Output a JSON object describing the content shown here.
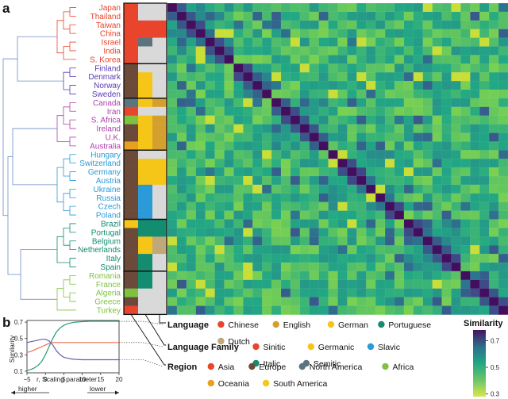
{
  "panels": {
    "a": "a",
    "b": "b"
  },
  "countries": [
    {
      "name": "Japan",
      "color": "#e8452c",
      "group": 0
    },
    {
      "name": "Thailand",
      "color": "#e8452c",
      "group": 0
    },
    {
      "name": "Taiwan",
      "color": "#e8452c",
      "group": 0
    },
    {
      "name": "China",
      "color": "#e8452c",
      "group": 0
    },
    {
      "name": "Israel",
      "color": "#e8452c",
      "group": 0
    },
    {
      "name": "India",
      "color": "#e8452c",
      "group": 0
    },
    {
      "name": "S. Korea",
      "color": "#e8452c",
      "group": 0
    },
    {
      "name": "Finland",
      "color": "#5b3ab5",
      "group": 1
    },
    {
      "name": "Denmark",
      "color": "#5b3ab5",
      "group": 1
    },
    {
      "name": "Norway",
      "color": "#5b3ab5",
      "group": 1
    },
    {
      "name": "Sweden",
      "color": "#5b3ab5",
      "group": 1
    },
    {
      "name": "Canada",
      "color": "#b03fae",
      "group": 2
    },
    {
      "name": "Iran",
      "color": "#b03fae",
      "group": 2
    },
    {
      "name": "S. Africa",
      "color": "#b03fae",
      "group": 2
    },
    {
      "name": "Ireland",
      "color": "#b03fae",
      "group": 2
    },
    {
      "name": "U.K.",
      "color": "#b03fae",
      "group": 2
    },
    {
      "name": "Australia",
      "color": "#b03fae",
      "group": 2
    },
    {
      "name": "Hungary",
      "color": "#2b9ad8",
      "group": 3
    },
    {
      "name": "Switzerland",
      "color": "#2b9ad8",
      "group": 3
    },
    {
      "name": "Germany",
      "color": "#2b9ad8",
      "group": 3
    },
    {
      "name": "Austria",
      "color": "#2b9ad8",
      "group": 3
    },
    {
      "name": "Ukraine",
      "color": "#2b9ad8",
      "group": 3
    },
    {
      "name": "Russia",
      "color": "#2b9ad8",
      "group": 3
    },
    {
      "name": "Czech",
      "color": "#2b9ad8",
      "group": 3
    },
    {
      "name": "Poland",
      "color": "#2b9ad8",
      "group": 3
    },
    {
      "name": "Brazil",
      "color": "#138c70",
      "group": 4
    },
    {
      "name": "Portugal",
      "color": "#138c70",
      "group": 4
    },
    {
      "name": "Belgium",
      "color": "#138c70",
      "group": 4
    },
    {
      "name": "Netherlands",
      "color": "#138c70",
      "group": 4
    },
    {
      "name": "Italy",
      "color": "#138c70",
      "group": 4
    },
    {
      "name": "Spain",
      "color": "#138c70",
      "group": 4
    },
    {
      "name": "Romania",
      "color": "#7fc241",
      "group": 5
    },
    {
      "name": "France",
      "color": "#7fc241",
      "group": 5
    },
    {
      "name": "Algeria",
      "color": "#7fc241",
      "group": 5
    },
    {
      "name": "Greece",
      "color": "#7fc241",
      "group": 5
    },
    {
      "name": "Turkey",
      "color": "#7fc241",
      "group": 5
    }
  ],
  "annotation_columns": {
    "region": [
      "#e8452c",
      "#e8452c",
      "#e8452c",
      "#e8452c",
      "#e8452c",
      "#e8452c",
      "#e8452c",
      "#6b4a3a",
      "#6b4a3a",
      "#6b4a3a",
      "#6b4a3a",
      "#5c7380",
      "#e8452c",
      "#7fc241",
      "#6b4a3a",
      "#6b4a3a",
      "#e8a020",
      "#6b4a3a",
      "#6b4a3a",
      "#6b4a3a",
      "#6b4a3a",
      "#6b4a3a",
      "#6b4a3a",
      "#6b4a3a",
      "#6b4a3a",
      "#f5c518",
      "#6b4a3a",
      "#6b4a3a",
      "#6b4a3a",
      "#6b4a3a",
      "#6b4a3a",
      "#6b4a3a",
      "#6b4a3a",
      "#7fc241",
      "#6b4a3a",
      "#e8452c"
    ],
    "family": [
      "#d9d9d9",
      "#d9d9d9",
      "#e8452c",
      "#e8452c",
      "#5c7380",
      "#d9d9d9",
      "#d9d9d9",
      "#d9d9d9",
      "#f5c518",
      "#f5c518",
      "#f5c518",
      "#f5c518",
      "#d9d9d9",
      "#f5c518",
      "#f5c518",
      "#f5c518",
      "#f5c518",
      "#d9d9d9",
      "#f5c518",
      "#f5c518",
      "#f5c518",
      "#2b9ad8",
      "#2b9ad8",
      "#2b9ad8",
      "#2b9ad8",
      "#138c70",
      "#138c70",
      "#f5c518",
      "#f5c518",
      "#138c70",
      "#138c70",
      "#138c70",
      "#138c70",
      "#d9d9d9",
      "#d9d9d9",
      "#d9d9d9"
    ],
    "language": [
      "#d9d9d9",
      "#d9d9d9",
      "#e8452c",
      "#e8452c",
      "#d9d9d9",
      "#d9d9d9",
      "#d9d9d9",
      "#d9d9d9",
      "#d9d9d9",
      "#d9d9d9",
      "#d9d9d9",
      "#d3a030",
      "#d9d9d9",
      "#d3a030",
      "#d3a030",
      "#d3a030",
      "#d3a030",
      "#d9d9d9",
      "#f5c518",
      "#f5c518",
      "#f5c518",
      "#d9d9d9",
      "#d9d9d9",
      "#d9d9d9",
      "#d9d9d9",
      "#138c70",
      "#138c70",
      "#c0a878",
      "#c0a878",
      "#d9d9d9",
      "#d9d9d9",
      "#d9d9d9",
      "#d9d9d9",
      "#d9d9d9",
      "#d9d9d9",
      "#d9d9d9"
    ]
  },
  "legend": {
    "language": {
      "title": "Language",
      "items": [
        {
          "label": "Chinese",
          "color": "#e8452c"
        },
        {
          "label": "English",
          "color": "#d3a030"
        },
        {
          "label": "German",
          "color": "#f5c518"
        },
        {
          "label": "Portuguese",
          "color": "#138c70"
        },
        {
          "label": "Dutch",
          "color": "#c0a878"
        }
      ]
    },
    "family": {
      "title": "Language Family",
      "items": [
        {
          "label": "Sinitic",
          "color": "#e8452c"
        },
        {
          "label": "Germanic",
          "color": "#f5c518"
        },
        {
          "label": "Slavic",
          "color": "#2b9ad8"
        },
        {
          "label": "Italic",
          "color": "#138c70"
        },
        {
          "label": "Semitic",
          "color": "#5c7380"
        }
      ]
    },
    "region": {
      "title": "Region",
      "items": [
        {
          "label": "Asia",
          "color": "#e8452c"
        },
        {
          "label": "Europe",
          "color": "#6b4a3a"
        },
        {
          "label": "North America",
          "color": "#5c7380"
        },
        {
          "label": "Africa",
          "color": "#7fc241"
        },
        {
          "label": "Oceania",
          "color": "#e8a020"
        },
        {
          "label": "South America",
          "color": "#f5c518"
        }
      ]
    }
  },
  "colorbar": {
    "title": "Similarity",
    "ticks": [
      "0.7",
      "0.5",
      "0.3"
    ],
    "min": 0.28,
    "max": 0.78
  },
  "chart_data": [
    {
      "type": "heatmap",
      "title": "Similarity",
      "rows": 36,
      "cols": 36,
      "value_range": [
        0.3,
        0.75
      ],
      "note": "pairwise similarity matrix ordered by clustering; diagonal high, block structure per cluster"
    },
    {
      "type": "line",
      "xlabel": "r, Scaling parameter",
      "ylabel": "Similarity",
      "xlim": [
        -5,
        20
      ],
      "ylim": [
        0.08,
        0.72
      ],
      "xticks": [
        "−5",
        "0",
        "5",
        "10",
        "15",
        "20"
      ],
      "yticks": [
        "0.1",
        "0.3",
        "0.5",
        "0.7"
      ],
      "x": [
        -5,
        -4,
        -3,
        -2,
        -1,
        0,
        1,
        2,
        3,
        4,
        5,
        6,
        7,
        8,
        10,
        12,
        14,
        16,
        18,
        20
      ],
      "series": [
        {
          "name": "Language",
          "color": "#2a9a7a",
          "values": [
            0.11,
            0.12,
            0.14,
            0.17,
            0.22,
            0.3,
            0.4,
            0.5,
            0.58,
            0.63,
            0.66,
            0.68,
            0.69,
            0.7,
            0.705,
            0.71,
            0.71,
            0.71,
            0.71,
            0.71
          ]
        },
        {
          "name": "Language Family",
          "color": "#e8724a",
          "values": [
            0.33,
            0.34,
            0.36,
            0.38,
            0.4,
            0.42,
            0.44,
            0.45,
            0.45,
            0.45,
            0.45,
            0.45,
            0.45,
            0.45,
            0.45,
            0.45,
            0.45,
            0.45,
            0.45,
            0.45
          ]
        },
        {
          "name": "Region",
          "color": "#6a5fb0",
          "values": [
            0.45,
            0.46,
            0.47,
            0.48,
            0.49,
            0.49,
            0.47,
            0.42,
            0.35,
            0.3,
            0.27,
            0.26,
            0.25,
            0.245,
            0.24,
            0.24,
            0.24,
            0.24,
            0.24,
            0.24
          ]
        }
      ],
      "arrows": {
        "left": "higher",
        "right": "lower"
      }
    }
  ]
}
